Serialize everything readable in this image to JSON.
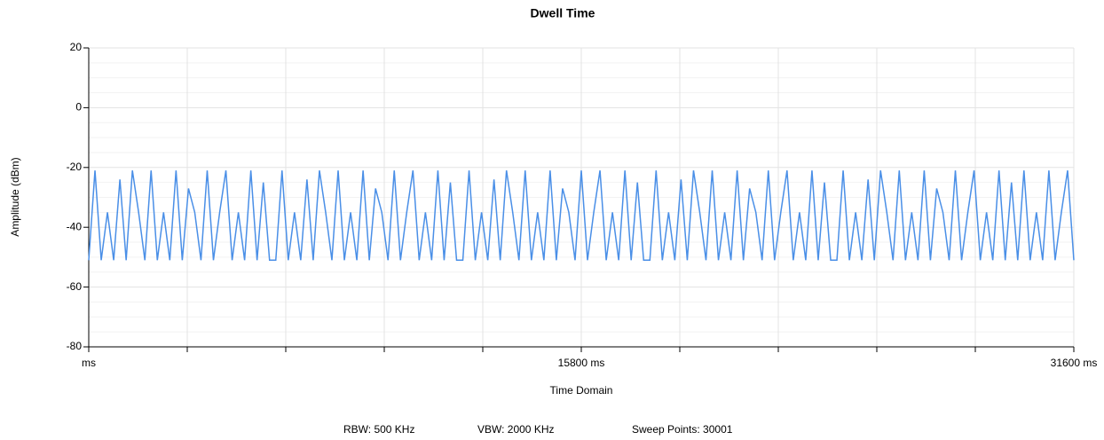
{
  "chart_data": {
    "type": "line",
    "title": "Dwell Time",
    "xlabel": "Time Domain",
    "ylabel": "Amplitude (dBm)",
    "footer": [
      "RBW: 500 KHz",
      "VBW: 2000 KHz",
      "Sweep Points: 30001"
    ],
    "xlim": [
      0,
      31600
    ],
    "ylim": [
      -80,
      20
    ],
    "xticks": [
      {
        "value": 0,
        "label": "ms"
      },
      {
        "value": 15800,
        "label": "15800 ms"
      },
      {
        "value": 31600,
        "label": "31600 ms"
      }
    ],
    "xminor_ticks": [
      3160,
      6320,
      9480,
      12640,
      18960,
      22120,
      25280,
      28440
    ],
    "yticks": [
      -80,
      -60,
      -40,
      -20,
      0,
      20
    ],
    "grid": true,
    "series": [
      {
        "name": "Trace",
        "color": "#4a8fe7",
        "x": [
          0,
          200,
          400,
          600,
          800,
          1000,
          1200,
          1400,
          1600,
          1800,
          2000,
          2200,
          2400,
          2600,
          2800,
          3000,
          3200,
          3400,
          3600,
          3800,
          4000,
          4200,
          4400,
          4600,
          4800,
          5000,
          5200,
          5400,
          5600,
          5800,
          6000,
          6200,
          6400,
          6600,
          6800,
          7000,
          7200,
          7400,
          7600,
          7800,
          8000,
          8200,
          8400,
          8600,
          8800,
          9000,
          9200,
          9400,
          9600,
          9800,
          10000,
          10200,
          10400,
          10600,
          10800,
          11000,
          11200,
          11400,
          11600,
          11800,
          12000,
          12200,
          12400,
          12600,
          12800,
          13000,
          13200,
          13400,
          13600,
          13800,
          14000,
          14200,
          14400,
          14600,
          14800,
          15000,
          15200,
          15400,
          15600,
          15800,
          16000,
          16200,
          16400,
          16600,
          16800,
          17000,
          17200,
          17400,
          17600,
          17800,
          18000,
          18200,
          18400,
          18600,
          18800,
          19000,
          19200,
          19400,
          19600,
          19800,
          20000,
          20200,
          20400,
          20600,
          20800,
          21000,
          21200,
          21400,
          21600,
          21800,
          22000,
          22200,
          22400,
          22600,
          22800,
          23000,
          23200,
          23400,
          23600,
          23800,
          24000,
          24200,
          24400,
          24600,
          24800,
          25000,
          25200,
          25400,
          25600,
          25800,
          26000,
          26200,
          26400,
          26600,
          26800,
          27000,
          27200,
          27400,
          27600,
          27800,
          28000,
          28200,
          28400,
          28600,
          28800,
          29000,
          29200,
          29400,
          29600,
          29800,
          30000,
          30200,
          30400,
          30600,
          30800,
          31000,
          31200,
          31400,
          31600
        ],
        "values": [
          -51,
          -21,
          -51,
          -35,
          -51,
          -24,
          -51,
          -21,
          -35,
          -51,
          -21,
          -51,
          -35,
          -51,
          -21,
          -51,
          -27,
          -35,
          -51,
          -21,
          -51,
          -35,
          -21,
          -51,
          -35,
          -51,
          -21,
          -51,
          -25,
          -51,
          -51,
          -21,
          -51,
          -35,
          -51,
          -24,
          -51,
          -21,
          -35,
          -51,
          -21,
          -51,
          -35,
          -51,
          -21,
          -51,
          -27,
          -35,
          -51,
          -21,
          -51,
          -35,
          -21,
          -51,
          -35,
          -51,
          -21,
          -51,
          -25,
          -51,
          -51,
          -21,
          -51,
          -35,
          -51,
          -24,
          -51,
          -21,
          -35,
          -51,
          -21,
          -51,
          -35,
          -51,
          -21,
          -51,
          -27,
          -35,
          -51,
          -21,
          -51,
          -35,
          -21,
          -51,
          -35,
          -51,
          -21,
          -51,
          -25,
          -51,
          -51,
          -21,
          -51,
          -35,
          -51,
          -24,
          -51,
          -21,
          -35,
          -51,
          -21,
          -51,
          -35,
          -51,
          -21,
          -51,
          -27,
          -35,
          -51,
          -21,
          -51,
          -35,
          -21,
          -51,
          -35,
          -51,
          -21,
          -51,
          -25,
          -51,
          -51,
          -21,
          -51,
          -35,
          -51,
          -24,
          -51,
          -21,
          -35,
          -51,
          -21,
          -51,
          -35,
          -51,
          -21,
          -51,
          -27,
          -35,
          -51,
          -21,
          -51,
          -35,
          -21,
          -51,
          -35,
          -51,
          -21,
          -51,
          -25,
          -51,
          -21,
          -51,
          -35,
          -51,
          -21,
          -51,
          -35,
          -21,
          -51
        ]
      }
    ]
  }
}
